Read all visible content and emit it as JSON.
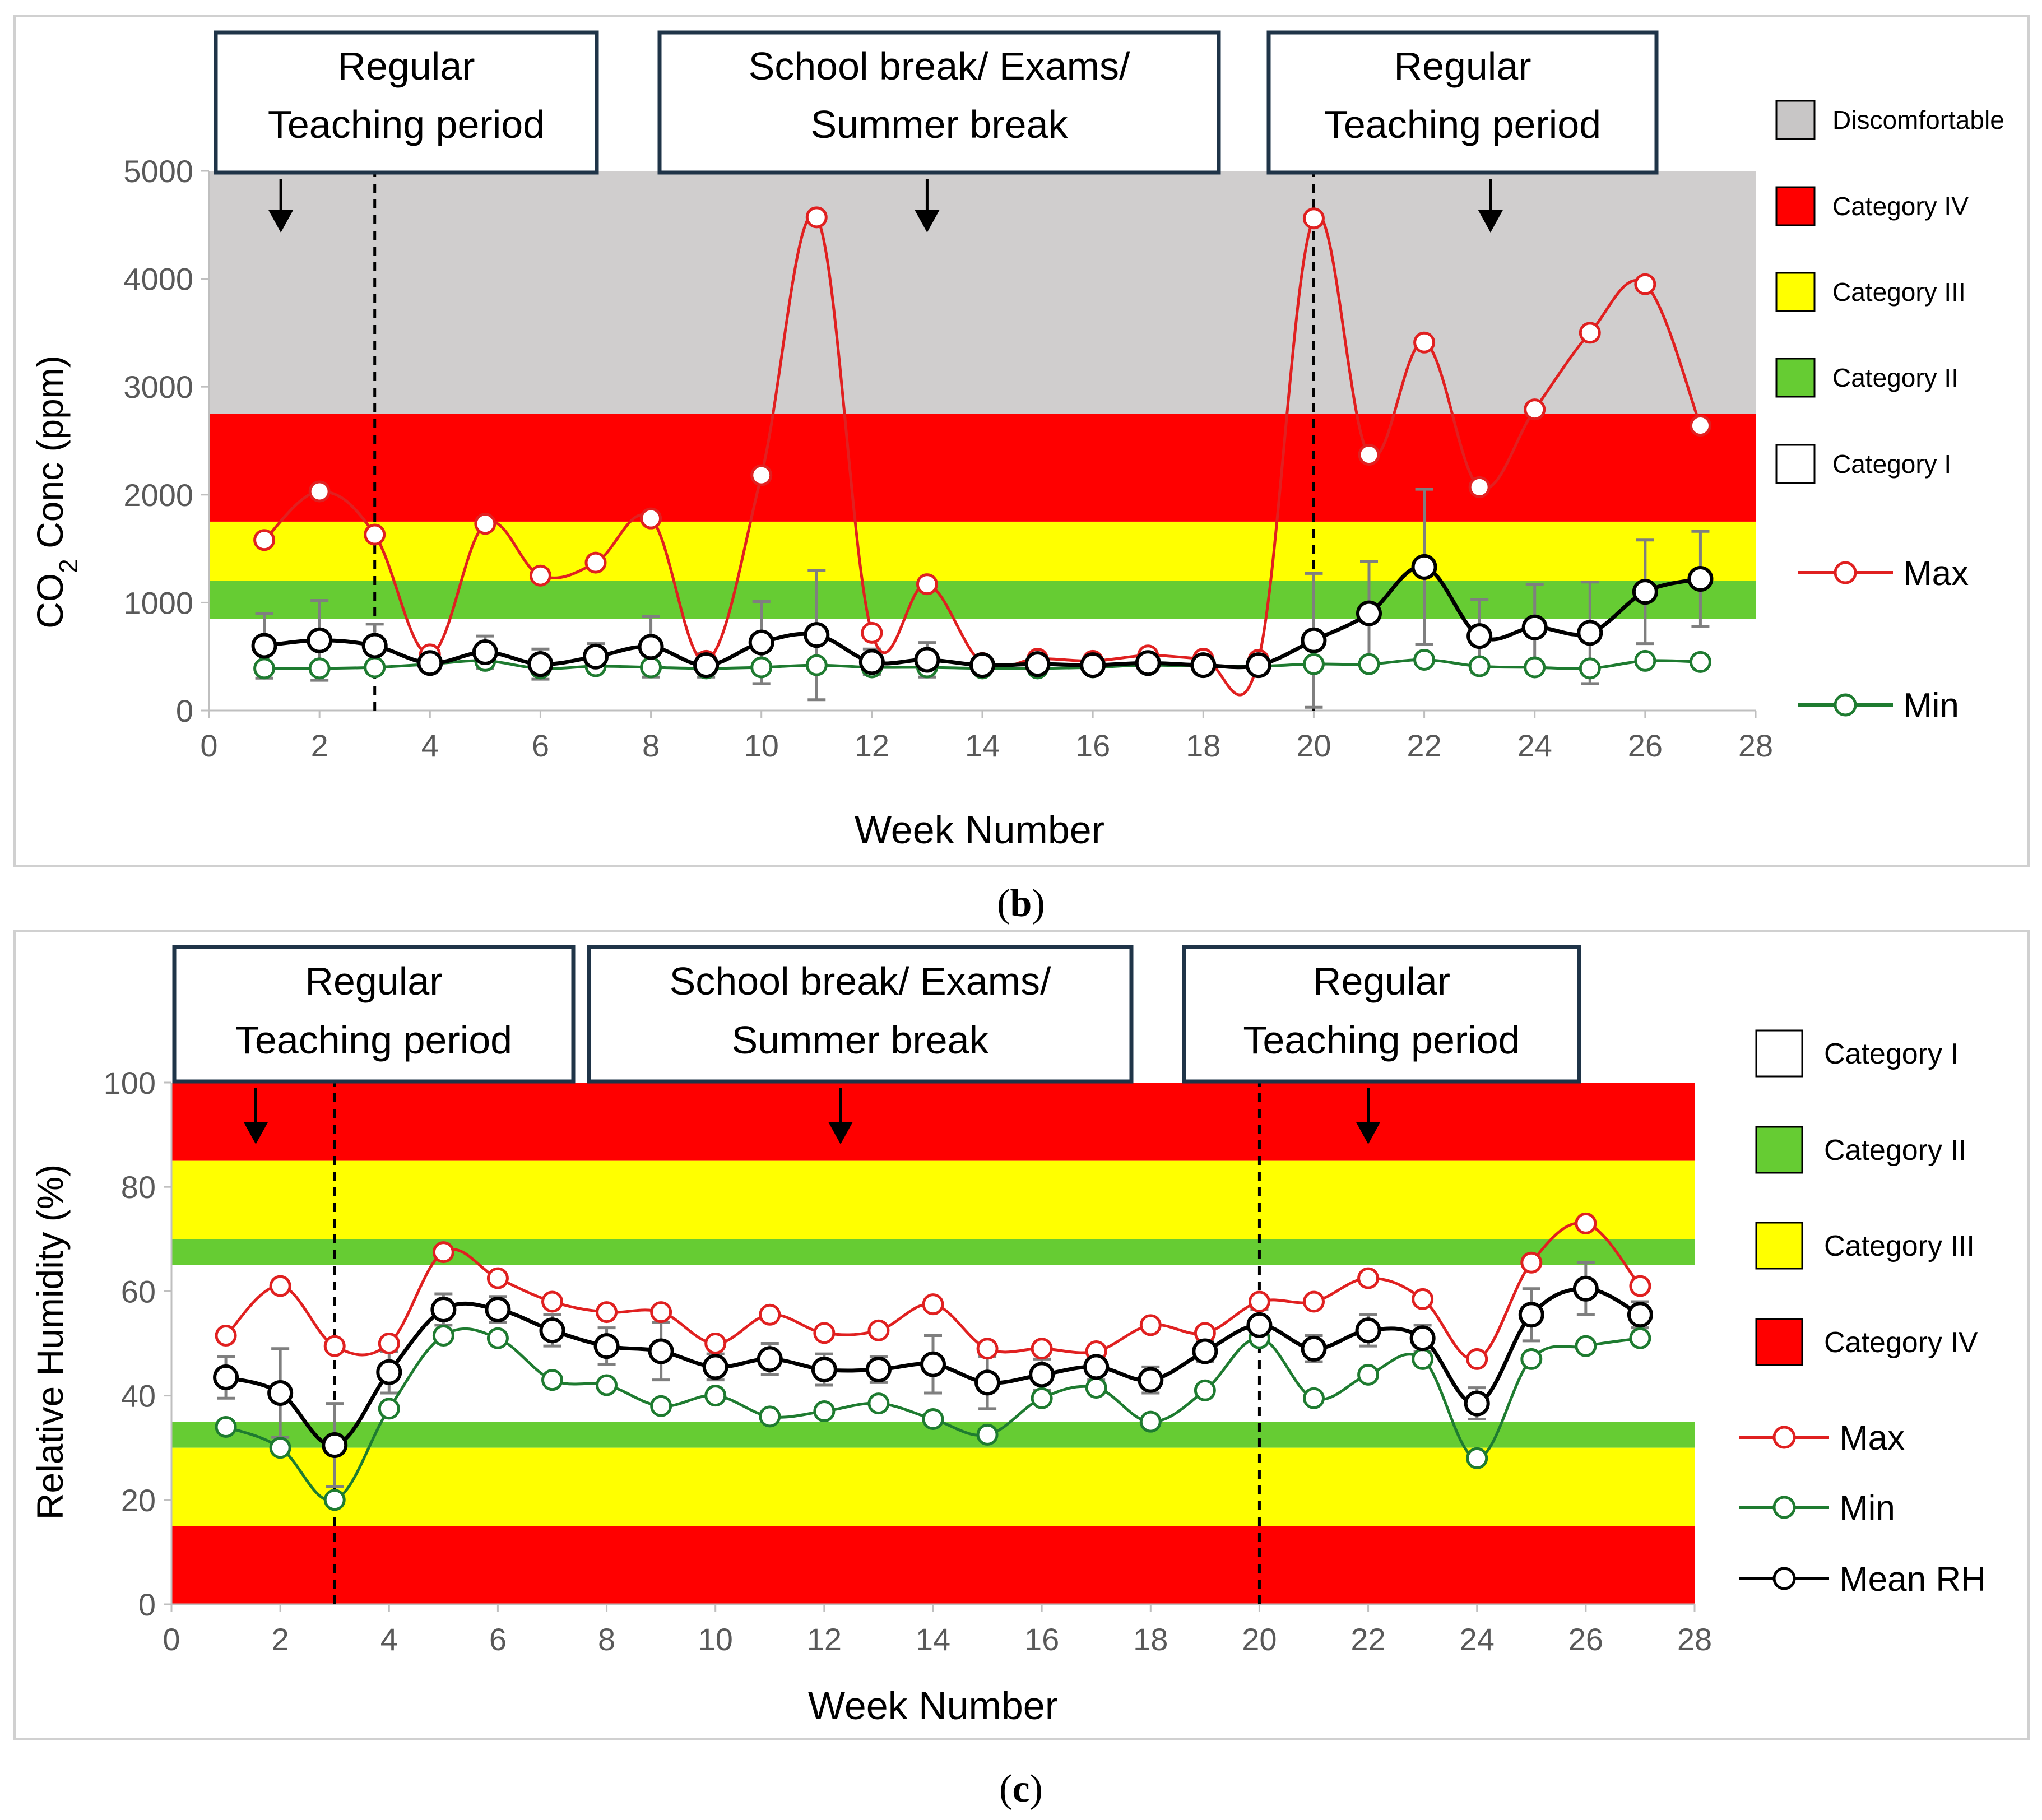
{
  "chart_data": [
    {
      "type": "line",
      "panel_label": "b",
      "xlabel": "Week Number",
      "ylabel_main": "CO",
      "ylabel_sub": "2",
      "ylabel_rest": " Conc (ppm)",
      "xlim": [
        0,
        28
      ],
      "ylim": [
        0,
        5000
      ],
      "xticks": [
        0,
        2,
        4,
        6,
        8,
        10,
        12,
        14,
        16,
        18,
        20,
        22,
        24,
        26,
        28
      ],
      "yticks": [
        0,
        1000,
        2000,
        3000,
        4000,
        5000
      ],
      "grid": false,
      "bands": [
        {
          "from": 2750,
          "to": 5000,
          "color": "#d0cece"
        },
        {
          "from": 1750,
          "to": 2750,
          "color": "#ff0000"
        },
        {
          "from": 1200,
          "to": 1750,
          "color": "#ffff00"
        },
        {
          "from": 850,
          "to": 1200,
          "color": "#66cc33"
        }
      ],
      "period_boxes": [
        {
          "line1": "Regular",
          "line2": "Teaching period",
          "arrow_x": 1.3
        },
        {
          "line1": "School break/ Exams/",
          "line2": "Summer break",
          "arrow_x": 13
        },
        {
          "line1": "Regular",
          "line2": "Teaching period",
          "arrow_x": 23.2
        }
      ],
      "dashed_lines": [
        3,
        20
      ],
      "legend_placement": "right",
      "legend": [
        {
          "kind": "box",
          "label": "Discomfortable",
          "color": "#c8c6c6"
        },
        {
          "kind": "box",
          "label": "Category IV",
          "color": "#ff0000"
        },
        {
          "kind": "box",
          "label": "Category III",
          "color": "#ffff00"
        },
        {
          "kind": "box",
          "label": "Category II",
          "color": "#66cc33"
        },
        {
          "kind": "box",
          "label": "Category I",
          "color": "#ffffff"
        },
        {
          "kind": "line",
          "label": "Max",
          "color": "#e02020"
        },
        {
          "kind": "line",
          "label": "Min",
          "color": "#1e7b30"
        }
      ],
      "x": [
        1,
        2,
        3,
        4,
        5,
        6,
        7,
        8,
        9,
        10,
        11,
        12,
        13,
        14,
        15,
        16,
        17,
        18,
        19,
        20,
        21,
        22,
        23,
        24,
        25,
        26,
        27
      ],
      "series": [
        {
          "name": "Max",
          "color": "#e02020",
          "values": [
            1580,
            2030,
            1630,
            520,
            1730,
            1250,
            1370,
            1780,
            460,
            2180,
            4570,
            720,
            1170,
            440,
            480,
            460,
            510,
            480,
            470,
            4560,
            2370,
            3410,
            2070,
            2790,
            3500,
            3950,
            2640
          ]
        },
        {
          "name": "Min",
          "color": "#1e7b30",
          "values": [
            390,
            390,
            400,
            430,
            460,
            390,
            410,
            400,
            390,
            400,
            420,
            400,
            400,
            390,
            390,
            400,
            420,
            410,
            410,
            430,
            430,
            470,
            410,
            400,
            390,
            460,
            450
          ]
        },
        {
          "color": "#000000",
          "values": [
            600,
            650,
            600,
            440,
            540,
            430,
            500,
            590,
            420,
            630,
            700,
            450,
            470,
            420,
            430,
            420,
            440,
            420,
            420,
            650,
            900,
            1330,
            690,
            770,
            720,
            1100,
            1220
          ],
          "errors": [
            300,
            370,
            200,
            70,
            150,
            140,
            120,
            280,
            110,
            380,
            600,
            120,
            160,
            70,
            80,
            80,
            60,
            40,
            40,
            620,
            480,
            720,
            340,
            400,
            470,
            480,
            440
          ]
        }
      ]
    },
    {
      "type": "line",
      "panel_label": "c",
      "xlabel": "Week Number",
      "ylabel_main": "Relative Humidity (%)",
      "ylabel_sub": "",
      "ylabel_rest": "",
      "xlim": [
        0,
        28
      ],
      "ylim": [
        0,
        100
      ],
      "xticks": [
        0,
        2,
        4,
        6,
        8,
        10,
        12,
        14,
        16,
        18,
        20,
        22,
        24,
        26,
        28
      ],
      "yticks": [
        0,
        20,
        40,
        60,
        80,
        100
      ],
      "grid": false,
      "bands": [
        {
          "from": 85,
          "to": 100,
          "color": "#ff0000"
        },
        {
          "from": 70,
          "to": 85,
          "color": "#ffff00"
        },
        {
          "from": 65,
          "to": 70,
          "color": "#66cc33"
        },
        {
          "from": 30,
          "to": 35,
          "color": "#66cc33"
        },
        {
          "from": 15,
          "to": 30,
          "color": "#ffff00"
        },
        {
          "from": 0,
          "to": 15,
          "color": "#ff0000"
        }
      ],
      "period_boxes": [
        {
          "line1": "Regular",
          "line2": "Teaching period",
          "arrow_x": 1.55
        },
        {
          "line1": "School break/ Exams/",
          "line2": "Summer break",
          "arrow_x": 12.3
        },
        {
          "line1": "Regular",
          "line2": "Teaching period",
          "arrow_x": 22
        }
      ],
      "dashed_lines": [
        3,
        20
      ],
      "legend_placement": "right",
      "legend": [
        {
          "kind": "box",
          "label": "Category I",
          "color": "#ffffff"
        },
        {
          "kind": "box",
          "label": "Category II",
          "color": "#66cc33"
        },
        {
          "kind": "box",
          "label": "Category III",
          "color": "#ffff00"
        },
        {
          "kind": "box",
          "label": "Category IV",
          "color": "#ff0000"
        },
        {
          "kind": "line",
          "label": "Max",
          "color": "#e02020"
        },
        {
          "kind": "line",
          "label": "Min",
          "color": "#1e7b30"
        },
        {
          "kind": "line",
          "label": "Mean RH",
          "color": "#000000"
        }
      ],
      "x": [
        1,
        2,
        3,
        4,
        5,
        6,
        7,
        8,
        9,
        10,
        11,
        12,
        13,
        14,
        15,
        16,
        17,
        18,
        19,
        20,
        21,
        22,
        23,
        24,
        25,
        26,
        27
      ],
      "series": [
        {
          "name": "Max",
          "color": "#e02020",
          "values": [
            51.5,
            61,
            49.5,
            50,
            67.5,
            62.5,
            58,
            56,
            56,
            50,
            55.5,
            52,
            52.5,
            57.5,
            49,
            49,
            48.5,
            53.5,
            52,
            58,
            58,
            62.5,
            58.5,
            47,
            65.5,
            73,
            61
          ]
        },
        {
          "name": "Min",
          "color": "#1e7b30",
          "values": [
            34,
            30,
            20,
            37.5,
            51.5,
            51,
            43,
            42,
            38,
            40,
            36,
            37,
            38.5,
            35.5,
            32.5,
            39.5,
            41.5,
            35,
            41,
            51,
            39.5,
            44,
            47,
            28,
            47,
            49.5,
            51
          ]
        },
        {
          "name": "Mean RH",
          "color": "#000000",
          "values": [
            43.5,
            40.5,
            30.5,
            44.5,
            56.5,
            56.5,
            52.5,
            49.5,
            48.5,
            45.5,
            47,
            45,
            45,
            46,
            42.5,
            44,
            45.5,
            43,
            48.5,
            53.5,
            49,
            52.5,
            51,
            38.5,
            55.5,
            60.5,
            55.5
          ],
          "errors": [
            4,
            8.5,
            8,
            4,
            3,
            2.5,
            3,
            3.5,
            5.5,
            2.5,
            3,
            3,
            2.5,
            5.5,
            5,
            3,
            2.5,
            2.5,
            2,
            3,
            2.5,
            3,
            2.5,
            3,
            5,
            5,
            2.5
          ]
        }
      ]
    }
  ]
}
